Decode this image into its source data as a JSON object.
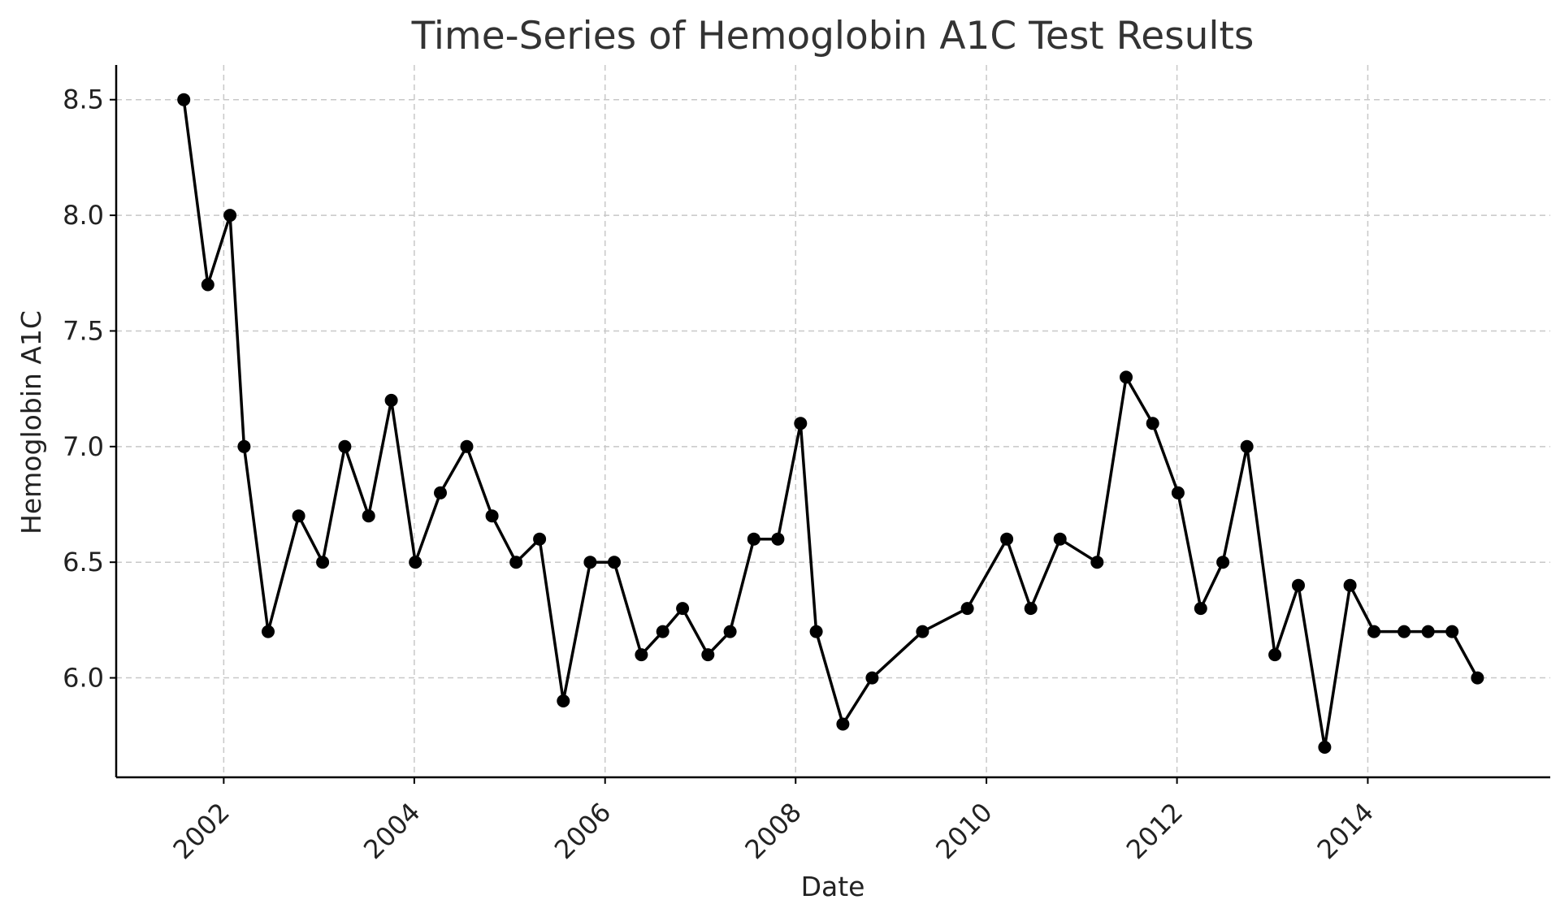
{
  "chart_data": {
    "type": "line",
    "title": "Time-Series of Hemoglobin A1C Test Results",
    "xlabel": "Date",
    "ylabel": "Hemoglobin A1C",
    "xlim": [
      "2000-11-15",
      "2015-12-01"
    ],
    "ylim": [
      5.57,
      8.65
    ],
    "x_ticks": [
      "2002",
      "2004",
      "2006",
      "2008",
      "2010",
      "2012",
      "2014"
    ],
    "y_ticks": [
      "6.0",
      "6.5",
      "7.0",
      "7.5",
      "8.0",
      "8.5"
    ],
    "grid": true,
    "marker": "circle",
    "line_color": "#000000",
    "series": [
      {
        "x": [
          "2001-08-01",
          "2001-11-01",
          "2002-01-25",
          "2002-03-20",
          "2002-06-20",
          "2002-10-15",
          "2003-01-15",
          "2003-04-10",
          "2003-07-10",
          "2003-10-05",
          "2004-01-05",
          "2004-04-10",
          "2004-07-20",
          "2004-10-25",
          "2005-01-25",
          "2005-04-25",
          "2005-07-25",
          "2005-11-05",
          "2006-02-05",
          "2006-05-20",
          "2006-08-10",
          "2006-10-25",
          "2007-01-30",
          "2007-04-25",
          "2007-07-25",
          "2007-10-25",
          "2008-01-20",
          "2008-03-20",
          "2008-06-30",
          "2008-10-20",
          "2009-05-01",
          "2009-10-20",
          "2010-03-20",
          "2010-06-20",
          "2010-10-10",
          "2011-03-01",
          "2011-06-20",
          "2011-09-30",
          "2012-01-05",
          "2012-04-01",
          "2012-06-25",
          "2012-09-25",
          "2013-01-10",
          "2013-04-10",
          "2013-07-20",
          "2013-10-25",
          "2014-01-25",
          "2014-05-20",
          "2014-08-20",
          "2014-11-20",
          "2015-02-25"
        ],
        "y": [
          8.5,
          7.7,
          8.0,
          7.0,
          6.2,
          6.7,
          6.5,
          7.0,
          6.7,
          7.2,
          6.5,
          6.8,
          7.0,
          6.7,
          6.5,
          6.6,
          5.9,
          6.5,
          6.5,
          6.1,
          6.2,
          6.3,
          6.1,
          6.2,
          6.6,
          6.6,
          7.1,
          6.2,
          5.8,
          6.0,
          6.2,
          6.3,
          6.6,
          6.3,
          6.6,
          6.5,
          7.3,
          7.1,
          6.8,
          6.3,
          6.5,
          7.0,
          6.1,
          6.4,
          5.7,
          6.4,
          6.2,
          6.2,
          6.2,
          6.2,
          6.0
        ]
      }
    ]
  }
}
